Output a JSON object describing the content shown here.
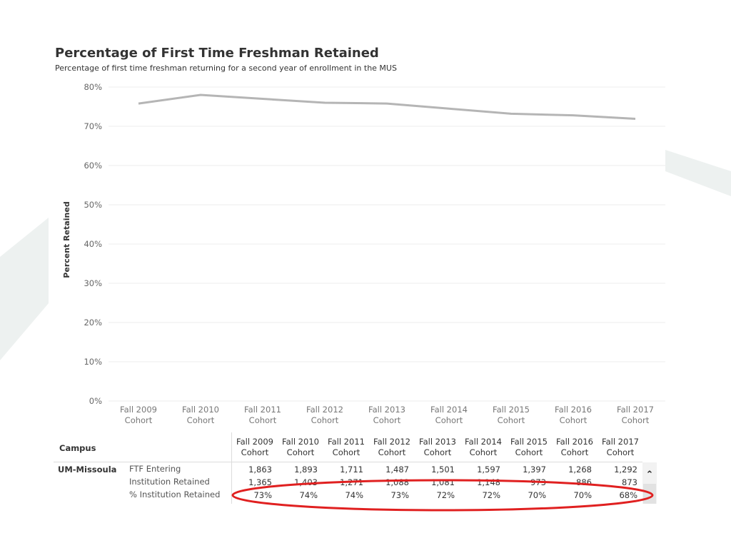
{
  "title": "Percentage of First Time Freshman Retained",
  "subtitle": "Percentage of first time freshman returning for a second year of enrollment in the MUS",
  "colors": {
    "line": "#b5b5b5",
    "grid": "#eeeeee",
    "highlight": "#e02020",
    "bg_shape": "#edf1f0"
  },
  "chart_data": {
    "type": "line",
    "title": "Percentage of First Time Freshman Retained",
    "subtitle": "Percentage of first time freshman returning for a second year of enrollment in the MUS",
    "xlabel": "",
    "ylabel": "Percent Retained",
    "ylim": [
      0,
      80
    ],
    "y_ticks": [
      "0%",
      "10%",
      "20%",
      "30%",
      "40%",
      "50%",
      "60%",
      "70%",
      "80%"
    ],
    "grid": true,
    "categories": [
      [
        "Fall 2009",
        "Cohort"
      ],
      [
        "Fall 2010",
        "Cohort"
      ],
      [
        "Fall 2011",
        "Cohort"
      ],
      [
        "Fall 2012",
        "Cohort"
      ],
      [
        "Fall 2013",
        "Cohort"
      ],
      [
        "Fall 2014",
        "Cohort"
      ],
      [
        "Fall 2015",
        "Cohort"
      ],
      [
        "Fall 2016",
        "Cohort"
      ],
      [
        "Fall 2017",
        "Cohort"
      ]
    ],
    "values": [
      75.8,
      78.0,
      77.0,
      76.0,
      75.8,
      74.5,
      73.2,
      72.8,
      71.9
    ]
  },
  "table": {
    "campus_header": "Campus",
    "columns": [
      [
        "Fall 2009",
        "Cohort"
      ],
      [
        "Fall 2010",
        "Cohort"
      ],
      [
        "Fall 2011",
        "Cohort"
      ],
      [
        "Fall 2012",
        "Cohort"
      ],
      [
        "Fall 2013",
        "Cohort"
      ],
      [
        "Fall 2014",
        "Cohort"
      ],
      [
        "Fall 2015",
        "Cohort"
      ],
      [
        "Fall 2016",
        "Cohort"
      ],
      [
        "Fall 2017",
        "Cohort"
      ]
    ],
    "campus": "UM-Missoula",
    "rows": [
      {
        "label": "FTF Entering",
        "values": [
          "1,863",
          "1,893",
          "1,711",
          "1,487",
          "1,501",
          "1,597",
          "1,397",
          "1,268",
          "1,292"
        ]
      },
      {
        "label": "Institution Retained",
        "values": [
          "1,365",
          "1,403",
          "1,271",
          "1,088",
          "1,081",
          "1,148",
          "973",
          "886",
          "873"
        ]
      },
      {
        "label": "% Institution Retained",
        "values": [
          "73%",
          "74%",
          "74%",
          "73%",
          "72%",
          "72%",
          "70%",
          "70%",
          "68%"
        ]
      }
    ],
    "scroll_up_icon": "chevron-up-icon"
  }
}
